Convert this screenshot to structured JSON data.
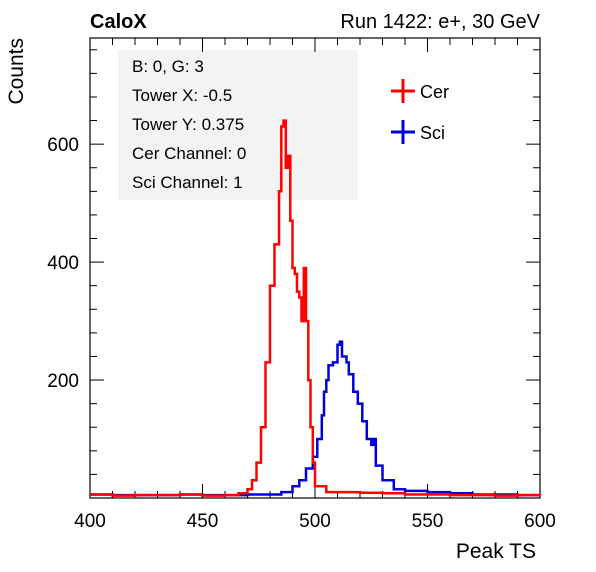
{
  "header": {
    "left_label": "CaloX",
    "right_label": "Run 1422: e+, 30 GeV"
  },
  "info_box": {
    "lines": [
      "B: 0, G: 3",
      "Tower X: -0.5",
      "Tower Y: 0.375",
      "Cer Channel: 0",
      "Sci Channel: 1"
    ]
  },
  "colors": {
    "cer": "#ff0000",
    "sci": "#0000dd",
    "axis": "#000000"
  },
  "chart_data": {
    "type": "line",
    "style": "histogram-step",
    "xlabel": "Peak TS",
    "ylabel": "Counts",
    "xlim": [
      400,
      600
    ],
    "ylim": [
      0,
      780
    ],
    "x_ticks": [
      400,
      450,
      500,
      550,
      600
    ],
    "y_ticks": [
      200,
      400,
      600
    ],
    "legend_position": "top-right",
    "grid": false,
    "series": [
      {
        "name": "Cer",
        "points": [
          [
            400,
            6
          ],
          [
            410,
            4
          ],
          [
            420,
            5
          ],
          [
            430,
            5
          ],
          [
            440,
            6
          ],
          [
            450,
            4
          ],
          [
            460,
            5
          ],
          [
            466,
            8
          ],
          [
            470,
            15
          ],
          [
            472,
            30
          ],
          [
            474,
            60
          ],
          [
            476,
            120
          ],
          [
            478,
            230
          ],
          [
            480,
            360
          ],
          [
            482,
            430
          ],
          [
            484,
            520
          ],
          [
            485,
            630
          ],
          [
            486,
            640
          ],
          [
            487,
            560
          ],
          [
            488,
            580
          ],
          [
            489,
            470
          ],
          [
            490,
            390
          ],
          [
            491,
            380
          ],
          [
            492,
            350
          ],
          [
            493,
            340
          ],
          [
            494,
            300
          ],
          [
            495,
            390
          ],
          [
            496,
            300
          ],
          [
            497,
            200
          ],
          [
            498,
            120
          ],
          [
            499,
            60
          ],
          [
            500,
            20
          ],
          [
            505,
            10
          ],
          [
            510,
            10
          ],
          [
            520,
            9
          ],
          [
            530,
            8
          ],
          [
            540,
            6
          ],
          [
            550,
            6
          ],
          [
            560,
            5
          ],
          [
            570,
            5
          ],
          [
            580,
            4
          ],
          [
            590,
            5
          ],
          [
            600,
            4
          ]
        ]
      },
      {
        "name": "Sci",
        "points": [
          [
            400,
            6
          ],
          [
            410,
            5
          ],
          [
            420,
            5
          ],
          [
            430,
            5
          ],
          [
            440,
            6
          ],
          [
            450,
            5
          ],
          [
            460,
            5
          ],
          [
            470,
            6
          ],
          [
            480,
            6
          ],
          [
            485,
            10
          ],
          [
            490,
            20
          ],
          [
            493,
            30
          ],
          [
            496,
            50
          ],
          [
            499,
            70
          ],
          [
            501,
            100
          ],
          [
            503,
            140
          ],
          [
            504,
            180
          ],
          [
            505,
            200
          ],
          [
            506,
            225
          ],
          [
            508,
            230
          ],
          [
            510,
            260
          ],
          [
            511,
            265
          ],
          [
            512,
            240
          ],
          [
            514,
            230
          ],
          [
            515,
            210
          ],
          [
            517,
            180
          ],
          [
            519,
            160
          ],
          [
            521,
            130
          ],
          [
            523,
            100
          ],
          [
            525,
            90
          ],
          [
            526,
            100
          ],
          [
            527,
            55
          ],
          [
            530,
            30
          ],
          [
            535,
            15
          ],
          [
            540,
            12
          ],
          [
            550,
            10
          ],
          [
            560,
            8
          ],
          [
            570,
            6
          ],
          [
            580,
            6
          ],
          [
            590,
            5
          ],
          [
            600,
            5
          ]
        ]
      }
    ]
  }
}
